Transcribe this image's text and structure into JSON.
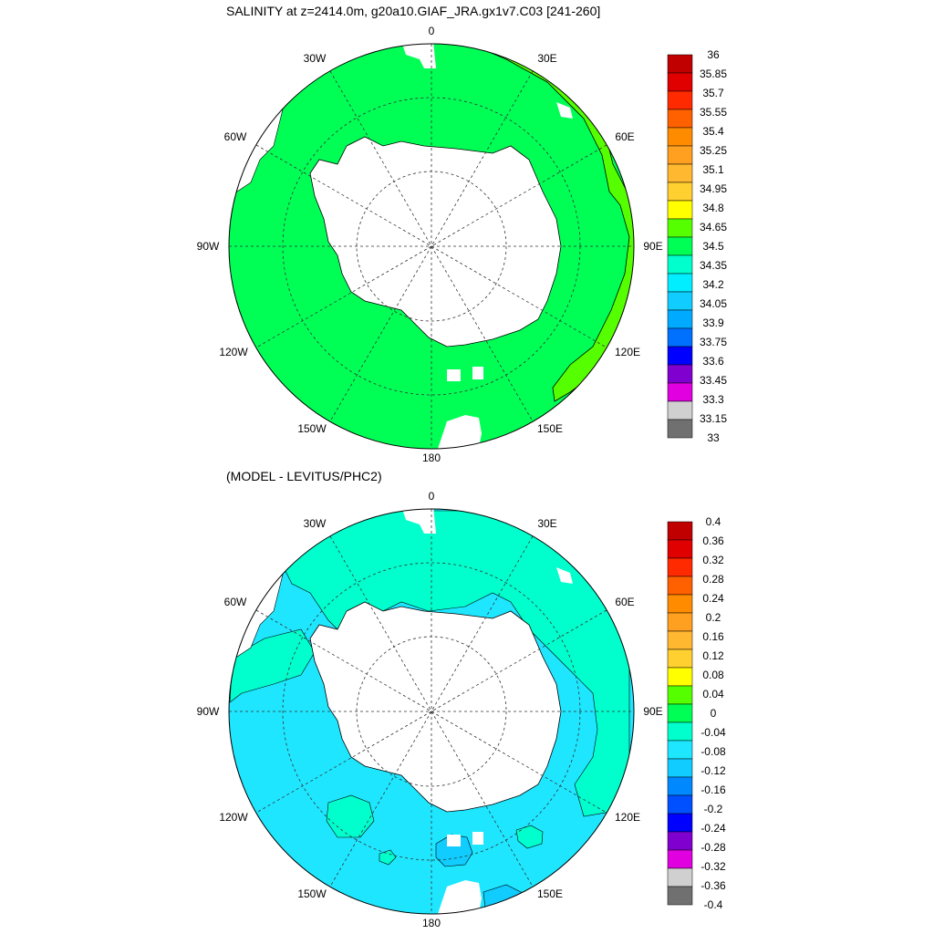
{
  "panel1": {
    "title": "SALINITY at z=2414.0m, g20a10.GIAF_JRA.gx1v7.C03 [241-260]",
    "colorbar": {
      "labels": [
        "36",
        "35.85",
        "35.7",
        "35.55",
        "35.4",
        "35.25",
        "35.1",
        "34.95",
        "34.8",
        "34.65",
        "34.5",
        "34.35",
        "34.2",
        "34.05",
        "33.9",
        "33.75",
        "33.6",
        "33.45",
        "33.3",
        "33.15",
        "33"
      ],
      "colors": [
        "#c00000",
        "#e00000",
        "#ff2a00",
        "#ff6000",
        "#ff8c00",
        "#ffa020",
        "#ffb830",
        "#ffd030",
        "#ffff00",
        "#55ff00",
        "#00ff55",
        "#00ffcc",
        "#00eeff",
        "#10ccff",
        "#00aaff",
        "#0070ff",
        "#0000ff",
        "#8000d0",
        "#e000e0",
        "#d0d0d0",
        "#707070"
      ]
    },
    "background_color": "#00ff55"
  },
  "panel2": {
    "title": "(MODEL - LEVITUS/PHC2)",
    "colorbar": {
      "labels": [
        "0.4",
        "0.36",
        "0.32",
        "0.28",
        "0.24",
        "0.2",
        "0.16",
        "0.12",
        "0.08",
        "0.04",
        "0",
        "-0.04",
        "-0.08",
        "-0.12",
        "-0.16",
        "-0.2",
        "-0.24",
        "-0.28",
        "-0.32",
        "-0.36",
        "-0.4"
      ],
      "colors": [
        "#c00000",
        "#e00000",
        "#ff2a00",
        "#ff6000",
        "#ff8c00",
        "#ffa020",
        "#ffb830",
        "#ffd030",
        "#ffff00",
        "#55ff00",
        "#00ff55",
        "#00ffcc",
        "#1ee6ff",
        "#10ccff",
        "#0088ff",
        "#0050ff",
        "#0000ff",
        "#8000d0",
        "#e000e0",
        "#d0d0d0",
        "#707070"
      ]
    },
    "background_color": "#1ee6ff"
  },
  "longitude_labels": [
    "0",
    "30E",
    "60E",
    "90E",
    "120E",
    "150E",
    "180",
    "150W",
    "120W",
    "90W",
    "60W",
    "30W"
  ]
}
